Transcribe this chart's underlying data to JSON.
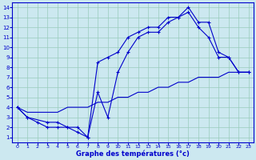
{
  "xlabel": "Graphe des températures (°c)",
  "bg_color": "#cce8f0",
  "grid_color": "#99ccbb",
  "line_color": "#0000cc",
  "spine_color": "#0000cc",
  "xlim_min": -0.5,
  "xlim_max": 23.5,
  "ylim_min": 0.5,
  "ylim_max": 14.5,
  "xticks": [
    0,
    1,
    2,
    3,
    4,
    5,
    6,
    7,
    8,
    9,
    10,
    11,
    12,
    13,
    14,
    15,
    16,
    17,
    18,
    19,
    20,
    21,
    22,
    23
  ],
  "yticks": [
    1,
    2,
    3,
    4,
    5,
    6,
    7,
    8,
    9,
    10,
    11,
    12,
    13,
    14
  ],
  "line1_x": [
    0,
    1,
    2,
    3,
    4,
    5,
    6,
    7,
    8,
    9,
    10,
    11,
    12,
    13,
    14,
    15,
    16,
    17,
    18,
    19,
    20,
    21,
    22,
    23
  ],
  "line1_y": [
    4,
    3,
    2.5,
    2,
    2,
    2,
    1.5,
    1,
    8.5,
    9,
    9.5,
    11,
    11.5,
    12,
    12,
    13,
    13,
    14,
    12.5,
    12.5,
    9.5,
    9,
    7.5,
    7.5
  ],
  "line2_x": [
    0,
    1,
    3,
    4,
    5,
    6,
    7,
    8,
    9,
    10,
    11,
    12,
    13,
    14,
    15,
    16,
    17,
    18,
    19,
    20,
    21,
    22,
    23
  ],
  "line2_y": [
    4,
    3,
    2.5,
    2.5,
    2,
    2,
    1,
    5.5,
    3,
    7.5,
    9.5,
    11,
    11.5,
    11.5,
    12.5,
    13,
    13.5,
    12,
    11,
    9,
    9,
    7.5,
    7.5
  ],
  "line3_x": [
    0,
    1,
    2,
    3,
    4,
    5,
    6,
    7,
    8,
    9,
    10,
    11,
    12,
    13,
    14,
    15,
    16,
    17,
    18,
    19,
    20,
    21,
    22,
    23
  ],
  "line3_y": [
    4,
    3.5,
    3.5,
    3.5,
    3.5,
    4,
    4,
    4,
    4.5,
    4.5,
    5,
    5,
    5.5,
    5.5,
    6,
    6,
    6.5,
    6.5,
    7,
    7,
    7,
    7.5,
    7.5,
    7.5
  ]
}
